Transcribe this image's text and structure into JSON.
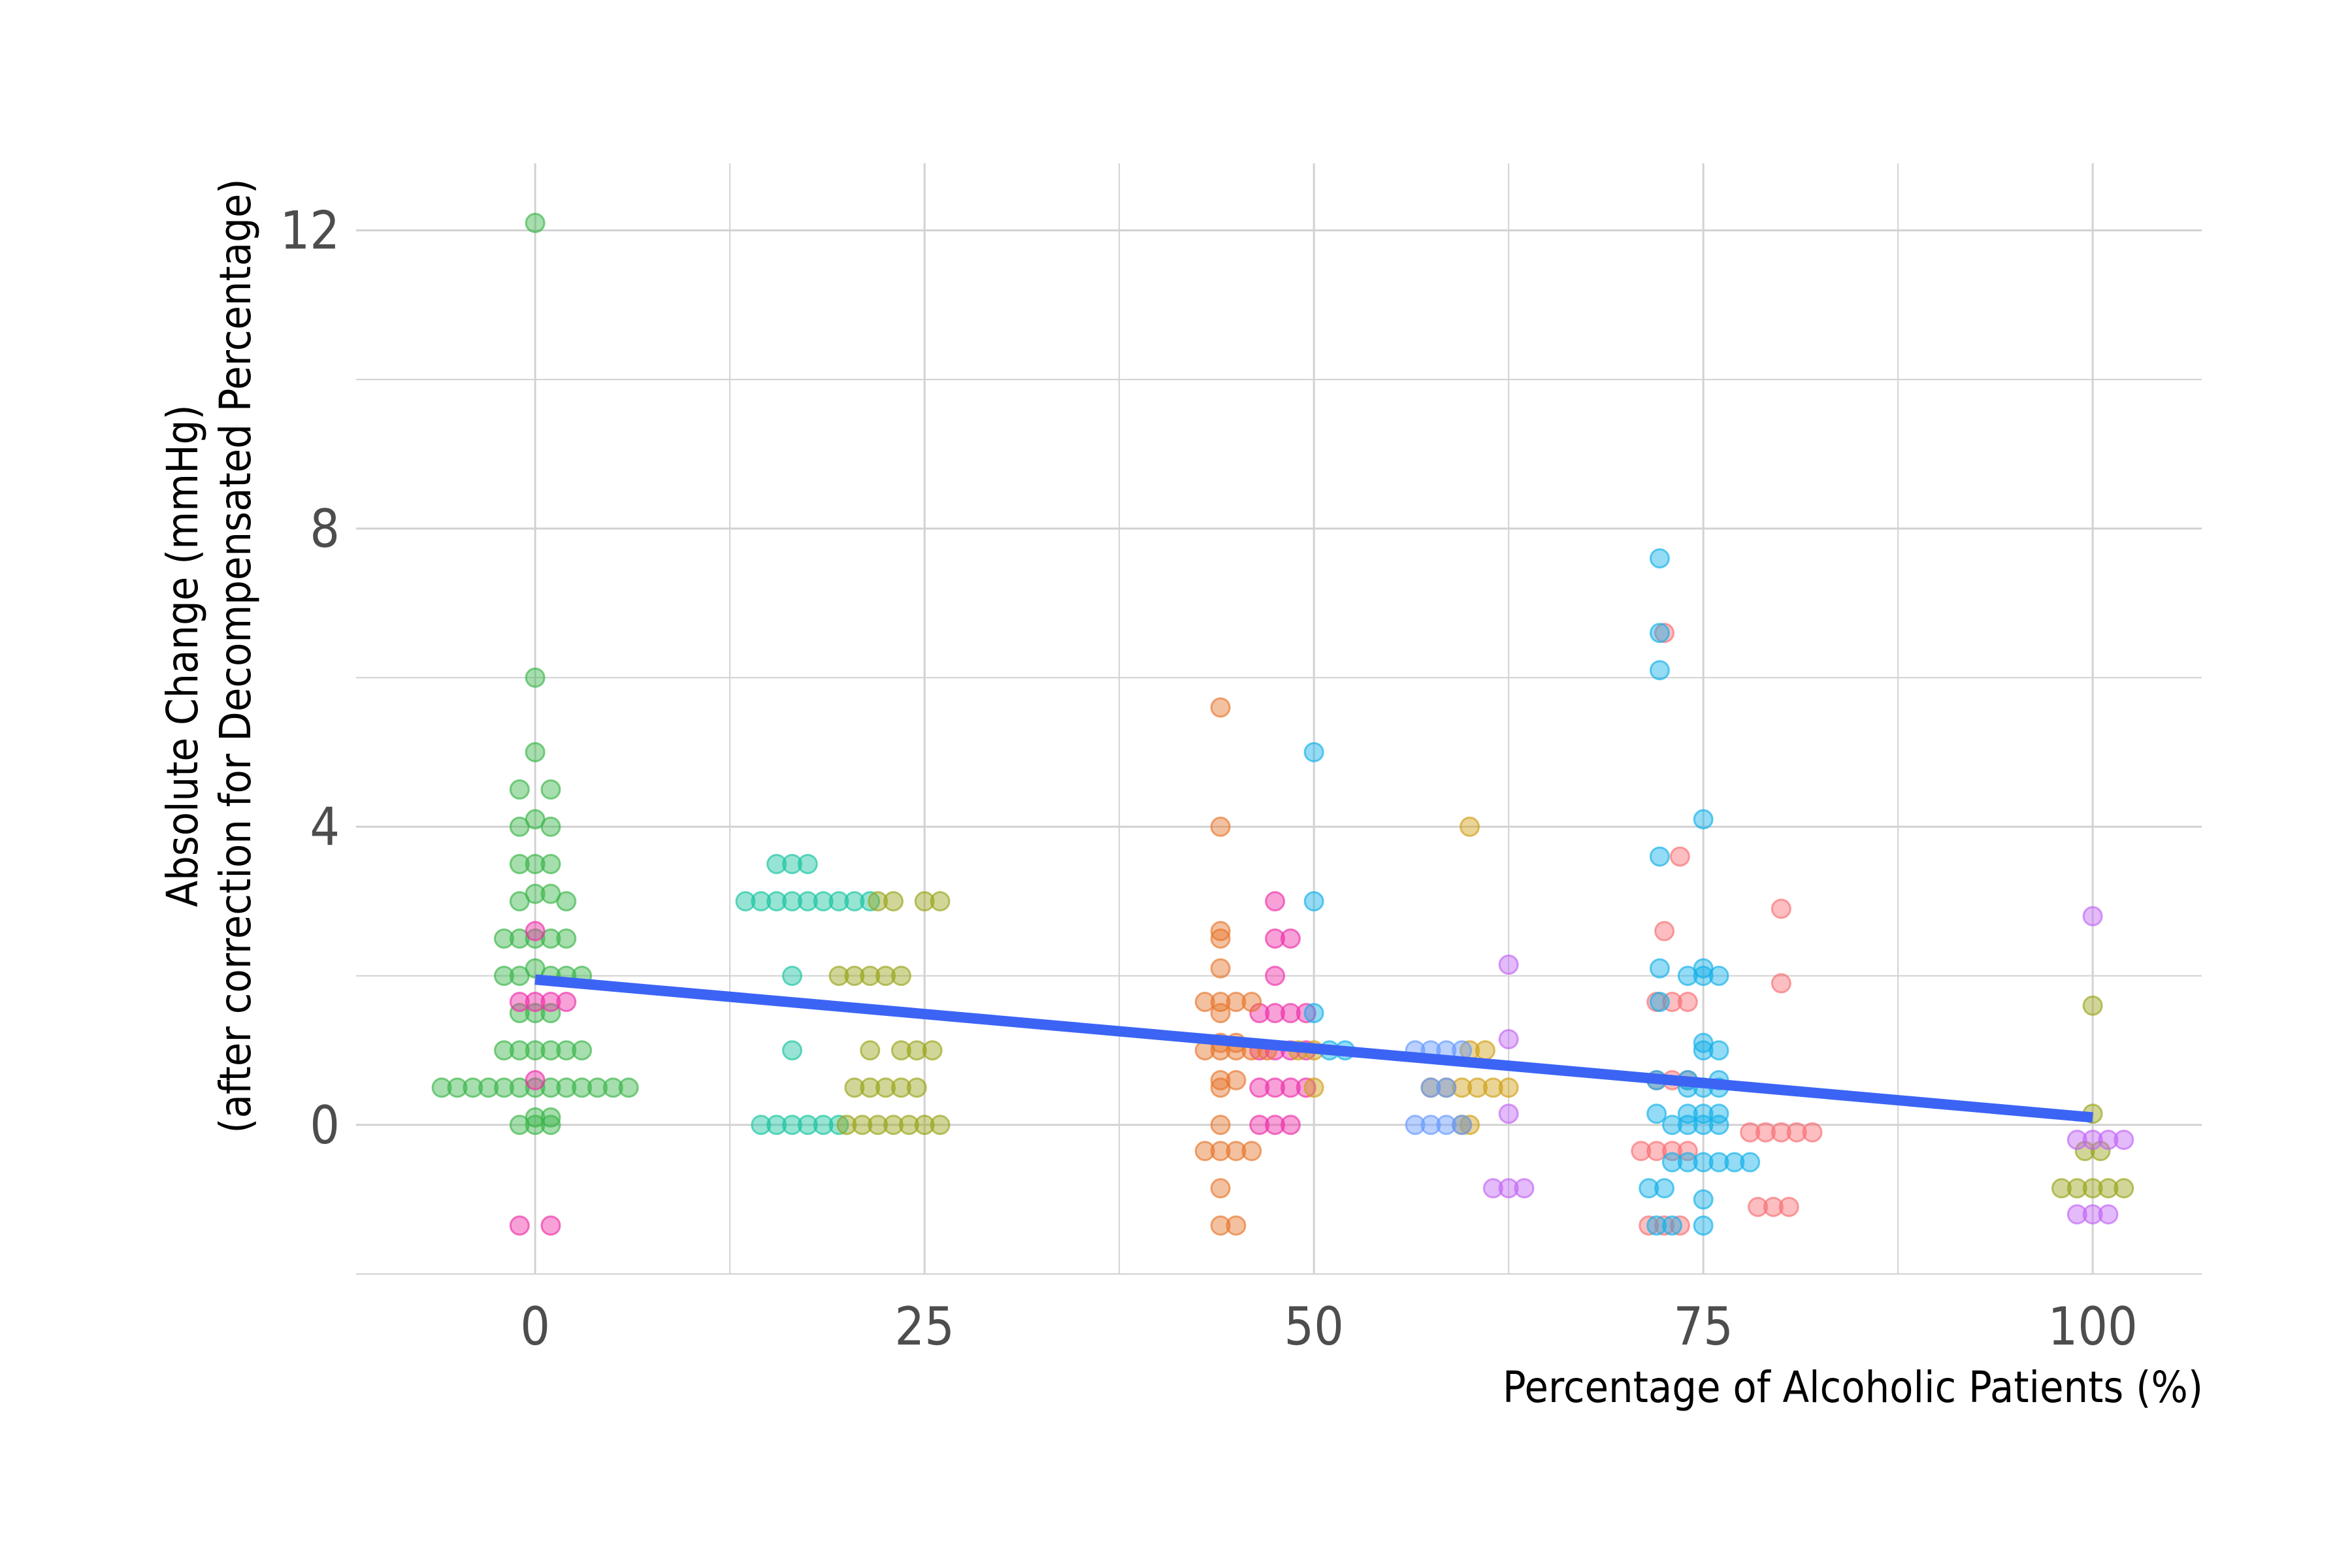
{
  "chart_data": {
    "type": "scatter",
    "title": "",
    "xlabel": "Percentage of Alcoholic Patients (%)",
    "ylabel_line1": "Absolute Change (mmHg)",
    "ylabel_line2": "(after correction for Decompensated Percentage)",
    "xlim": [
      -11.5,
      107
    ],
    "ylim": [
      -2.0,
      12.9
    ],
    "x_ticks": [
      0,
      25,
      50,
      75,
      100
    ],
    "x_tick_labels": [
      "0",
      "25",
      "50",
      "75",
      "100"
    ],
    "y_ticks": [
      0,
      4,
      8,
      12
    ],
    "y_tick_labels": [
      "0",
      "4",
      "8",
      "12"
    ],
    "grid": true,
    "legend": "none",
    "point_opacity": 0.45,
    "trend_line": {
      "x": [
        0,
        100
      ],
      "y": [
        1.95,
        0.1
      ],
      "color": "#3b64f5"
    },
    "series": [
      {
        "color": "#3ab54a",
        "points": [
          [
            0,
            12.1
          ],
          [
            0,
            6.0
          ],
          [
            0,
            5.0
          ],
          [
            -1,
            4.5
          ],
          [
            1,
            4.5
          ],
          [
            -1,
            4.0
          ],
          [
            0,
            4.1
          ],
          [
            1,
            4.0
          ],
          [
            -1,
            3.5
          ],
          [
            0,
            3.5
          ],
          [
            1,
            3.5
          ],
          [
            -1,
            3.0
          ],
          [
            0,
            3.1
          ],
          [
            1,
            3.1
          ],
          [
            2,
            3.0
          ],
          [
            -2,
            2.5
          ],
          [
            -1,
            2.5
          ],
          [
            0,
            2.5
          ],
          [
            1,
            2.5
          ],
          [
            2,
            2.5
          ],
          [
            -2,
            2.0
          ],
          [
            -1,
            2.0
          ],
          [
            0,
            2.1
          ],
          [
            1,
            2.0
          ],
          [
            2,
            2.0
          ],
          [
            3,
            2.0
          ],
          [
            -1,
            1.5
          ],
          [
            0,
            1.5
          ],
          [
            1,
            1.5
          ],
          [
            -2,
            1.0
          ],
          [
            -1,
            1.0
          ],
          [
            0,
            1.0
          ],
          [
            1,
            1.0
          ],
          [
            2,
            1.0
          ],
          [
            3,
            1.0
          ],
          [
            -6,
            0.5
          ],
          [
            -5,
            0.5
          ],
          [
            -4,
            0.5
          ],
          [
            -3,
            0.5
          ],
          [
            -2,
            0.5
          ],
          [
            -1,
            0.5
          ],
          [
            0,
            0.5
          ],
          [
            1,
            0.5
          ],
          [
            2,
            0.5
          ],
          [
            3,
            0.5
          ],
          [
            4,
            0.5
          ],
          [
            5,
            0.5
          ],
          [
            6,
            0.5
          ],
          [
            -1,
            0.0
          ],
          [
            0,
            0.1
          ],
          [
            1,
            0.1
          ],
          [
            0,
            0.0
          ],
          [
            1,
            0.0
          ]
        ]
      },
      {
        "color": "#18c4a0",
        "points": [
          [
            15.5,
            3.5
          ],
          [
            16.5,
            3.5
          ],
          [
            17.5,
            3.5
          ],
          [
            13.5,
            3.0
          ],
          [
            14.5,
            3.0
          ],
          [
            15.5,
            3.0
          ],
          [
            16.5,
            3.0
          ],
          [
            17.5,
            3.0
          ],
          [
            18.5,
            3.0
          ],
          [
            19.5,
            3.0
          ],
          [
            20.5,
            3.0
          ],
          [
            21.5,
            3.0
          ],
          [
            16.5,
            2.0
          ],
          [
            16.5,
            1.0
          ],
          [
            14.5,
            0.0
          ],
          [
            15.5,
            0.0
          ],
          [
            16.5,
            0.0
          ],
          [
            17.5,
            0.0
          ],
          [
            18.5,
            0.0
          ],
          [
            19.5,
            0.0
          ]
        ]
      },
      {
        "color": "#9aa41a",
        "points": [
          [
            22,
            3.0
          ],
          [
            23,
            3.0
          ],
          [
            25,
            3.0
          ],
          [
            26,
            3.0
          ],
          [
            19.5,
            2.0
          ],
          [
            20.5,
            2.0
          ],
          [
            21.5,
            2.0
          ],
          [
            22.5,
            2.0
          ],
          [
            23.5,
            2.0
          ],
          [
            21.5,
            1.0
          ],
          [
            23.5,
            1.0
          ],
          [
            24.5,
            1.0
          ],
          [
            25.5,
            1.0
          ],
          [
            20.5,
            0.5
          ],
          [
            21.5,
            0.5
          ],
          [
            22.5,
            0.5
          ],
          [
            23.5,
            0.5
          ],
          [
            24.5,
            0.5
          ],
          [
            20,
            0.0
          ],
          [
            21,
            0.0
          ],
          [
            22,
            0.0
          ],
          [
            23,
            0.0
          ],
          [
            24,
            0.0
          ],
          [
            25,
            0.0
          ],
          [
            26,
            0.0
          ],
          [
            100,
            1.6
          ],
          [
            100,
            0.15
          ],
          [
            99.5,
            -0.35
          ],
          [
            100.5,
            -0.35
          ],
          [
            98,
            -0.85
          ],
          [
            99,
            -0.85
          ],
          [
            100,
            -0.85
          ],
          [
            101,
            -0.85
          ],
          [
            102,
            -0.85
          ]
        ]
      },
      {
        "color": "#ee2fa8",
        "points": [
          [
            -1,
            1.65
          ],
          [
            0,
            1.65
          ],
          [
            1,
            1.65
          ],
          [
            2,
            1.65
          ],
          [
            0,
            2.6
          ],
          [
            0,
            0.6
          ],
          [
            -1,
            -1.35
          ],
          [
            1,
            -1.35
          ],
          [
            47.5,
            3.0
          ],
          [
            47.5,
            2.5
          ],
          [
            48.5,
            2.5
          ],
          [
            47.5,
            2.0
          ],
          [
            46.5,
            1.5
          ],
          [
            47.5,
            1.5
          ],
          [
            48.5,
            1.5
          ],
          [
            49.5,
            1.5
          ],
          [
            46.5,
            1.0
          ],
          [
            47.5,
            1.0
          ],
          [
            48.5,
            1.0
          ],
          [
            49.5,
            1.0
          ],
          [
            46.5,
            0.5
          ],
          [
            47.5,
            0.5
          ],
          [
            48.5,
            0.5
          ],
          [
            49.5,
            0.5
          ],
          [
            46.5,
            0.0
          ],
          [
            47.5,
            0.0
          ],
          [
            48.5,
            0.0
          ]
        ]
      },
      {
        "color": "#f86f73",
        "points": [
          [
            72.5,
            6.6
          ],
          [
            73.5,
            3.6
          ],
          [
            72.5,
            2.6
          ],
          [
            72,
            1.65
          ],
          [
            73,
            1.65
          ],
          [
            74,
            1.65
          ],
          [
            72,
            0.6
          ],
          [
            73,
            0.6
          ],
          [
            74,
            0.6
          ],
          [
            71,
            -0.35
          ],
          [
            72,
            -0.35
          ],
          [
            73,
            -0.35
          ],
          [
            74,
            -0.35
          ],
          [
            71.5,
            -1.35
          ],
          [
            72.5,
            -1.35
          ],
          [
            73.5,
            -1.35
          ],
          [
            80,
            2.9
          ],
          [
            80,
            1.9
          ],
          [
            78,
            -0.1
          ],
          [
            79,
            -0.1
          ],
          [
            80,
            -0.1
          ],
          [
            81,
            -0.1
          ],
          [
            82,
            -0.1
          ],
          [
            78.5,
            -1.1
          ],
          [
            79.5,
            -1.1
          ],
          [
            80.5,
            -1.1
          ]
        ]
      },
      {
        "color": "#e6762c",
        "points": [
          [
            44,
            5.6
          ],
          [
            44,
            4.0
          ],
          [
            44,
            2.6
          ],
          [
            44,
            2.5
          ],
          [
            44,
            2.1
          ],
          [
            43,
            1.65
          ],
          [
            44,
            1.65
          ],
          [
            45,
            1.65
          ],
          [
            46,
            1.65
          ],
          [
            44,
            1.5
          ],
          [
            44,
            1.1
          ],
          [
            45,
            1.1
          ],
          [
            43,
            1.0
          ],
          [
            44,
            1.0
          ],
          [
            45,
            1.0
          ],
          [
            46,
            1.0
          ],
          [
            47,
            1.0
          ],
          [
            44,
            0.6
          ],
          [
            45,
            0.6
          ],
          [
            44,
            0.5
          ],
          [
            44,
            0.0
          ],
          [
            43,
            -0.35
          ],
          [
            44,
            -0.35
          ],
          [
            45,
            -0.35
          ],
          [
            46,
            -0.35
          ],
          [
            44,
            -0.85
          ],
          [
            44,
            -1.35
          ],
          [
            45,
            -1.35
          ]
        ]
      },
      {
        "color": "#d1a016",
        "points": [
          [
            60,
            4.0
          ],
          [
            60,
            1.0
          ],
          [
            61,
            1.0
          ],
          [
            57.5,
            0.5
          ],
          [
            58.5,
            0.5
          ],
          [
            59.5,
            0.5
          ],
          [
            60.5,
            0.5
          ],
          [
            61.5,
            0.5
          ],
          [
            62.5,
            0.5
          ],
          [
            59.5,
            0.0
          ],
          [
            60,
            0.0
          ],
          [
            50,
            0.5
          ],
          [
            50,
            1.0
          ],
          [
            49,
            1.0
          ]
        ]
      },
      {
        "color": "#c165f5",
        "points": [
          [
            62.5,
            2.15
          ],
          [
            62.5,
            1.15
          ],
          [
            62.5,
            0.15
          ],
          [
            61.5,
            -0.85
          ],
          [
            62.5,
            -0.85
          ],
          [
            63.5,
            -0.85
          ],
          [
            100,
            2.8
          ],
          [
            99,
            -0.2
          ],
          [
            100,
            -0.2
          ],
          [
            101,
            -0.2
          ],
          [
            102,
            -0.2
          ],
          [
            99,
            -1.2
          ],
          [
            100,
            -1.2
          ],
          [
            101,
            -1.2
          ]
        ]
      },
      {
        "color": "#6699ff",
        "points": [
          [
            56.5,
            1.0
          ],
          [
            57.5,
            1.0
          ],
          [
            58.5,
            1.0
          ],
          [
            59.5,
            1.0
          ],
          [
            57.5,
            0.5
          ],
          [
            58.5,
            0.5
          ],
          [
            56.5,
            0.0
          ],
          [
            57.5,
            0.0
          ],
          [
            58.5,
            0.0
          ],
          [
            59.5,
            0.0
          ]
        ]
      },
      {
        "color": "#12b0e8",
        "points": [
          [
            50,
            5.0
          ],
          [
            50,
            3.0
          ],
          [
            50,
            1.5
          ],
          [
            51,
            1.0
          ],
          [
            52,
            1.0
          ],
          [
            72.2,
            7.6
          ],
          [
            72.2,
            6.6
          ],
          [
            72.2,
            6.1
          ],
          [
            72.2,
            3.6
          ],
          [
            72.2,
            2.1
          ],
          [
            72.2,
            1.65
          ],
          [
            72,
            0.6
          ],
          [
            72,
            0.15
          ],
          [
            73,
            0.0
          ],
          [
            71.5,
            -0.85
          ],
          [
            72.5,
            -0.85
          ],
          [
            72,
            -1.35
          ],
          [
            73,
            -1.35
          ],
          [
            75,
            4.1
          ],
          [
            75,
            2.1
          ],
          [
            74,
            2.0
          ],
          [
            75,
            2.0
          ],
          [
            76,
            2.0
          ],
          [
            75,
            1.1
          ],
          [
            75,
            1.0
          ],
          [
            76,
            1.0
          ],
          [
            74,
            0.6
          ],
          [
            76,
            0.6
          ],
          [
            74,
            0.5
          ],
          [
            75,
            0.5
          ],
          [
            76,
            0.5
          ],
          [
            74,
            0.15
          ],
          [
            75,
            0.15
          ],
          [
            76,
            0.15
          ],
          [
            74,
            0.0
          ],
          [
            75,
            0.0
          ],
          [
            76,
            0.0
          ],
          [
            73,
            -0.5
          ],
          [
            74,
            -0.5
          ],
          [
            75,
            -0.5
          ],
          [
            76,
            -0.5
          ],
          [
            77,
            -0.5
          ],
          [
            78,
            -0.5
          ],
          [
            75,
            -1.0
          ],
          [
            75,
            -1.35
          ]
        ]
      }
    ]
  }
}
